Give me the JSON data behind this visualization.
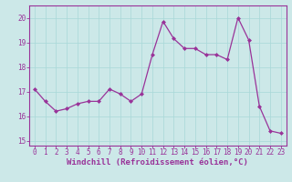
{
  "x": [
    0,
    1,
    2,
    3,
    4,
    5,
    6,
    7,
    8,
    9,
    10,
    11,
    12,
    13,
    14,
    15,
    16,
    17,
    18,
    19,
    20,
    21,
    22,
    23
  ],
  "y": [
    17.1,
    16.6,
    16.2,
    16.3,
    16.5,
    16.6,
    16.6,
    17.1,
    16.9,
    16.6,
    16.9,
    18.5,
    19.85,
    19.15,
    18.75,
    18.75,
    18.5,
    18.5,
    18.3,
    20.0,
    19.1,
    16.4,
    15.4,
    15.3
  ],
  "line_color": "#993399",
  "marker": "D",
  "markersize": 2.0,
  "linewidth": 0.9,
  "xlabel": "Windchill (Refroidissement éolien,°C)",
  "xlabel_fontsize": 6.5,
  "ylim": [
    14.8,
    20.5
  ],
  "xlim": [
    -0.5,
    23.5
  ],
  "yticks": [
    15,
    16,
    17,
    18,
    19,
    20
  ],
  "xticks": [
    0,
    1,
    2,
    3,
    4,
    5,
    6,
    7,
    8,
    9,
    10,
    11,
    12,
    13,
    14,
    15,
    16,
    17,
    18,
    19,
    20,
    21,
    22,
    23
  ],
  "grid_color": "#a8d8d8",
  "bg_color": "#cce8e8",
  "tick_fontsize": 5.5,
  "tick_color": "#993399",
  "axis_color": "#993399",
  "spine_color": "#993399"
}
